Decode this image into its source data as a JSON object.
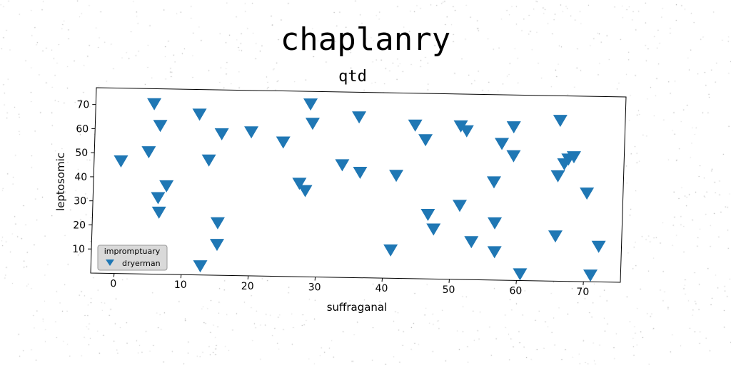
{
  "suptitle": "chaplanry",
  "chart_data": {
    "type": "scatter",
    "title": "qtd",
    "xlabel": "suffraganal",
    "ylabel": "leptosomic",
    "xlim": [
      -3.5,
      75.5
    ],
    "ylim": [
      0,
      77
    ],
    "xticks": [
      0,
      10,
      20,
      30,
      40,
      50,
      60,
      70
    ],
    "yticks": [
      10,
      20,
      30,
      40,
      50,
      60,
      70
    ],
    "grid": false,
    "legend": {
      "title": "impromptuary",
      "placement": "lower-left"
    },
    "series": [
      {
        "name": "dryerman",
        "marker": "triangle-down",
        "color": "#1f77b4",
        "x": [
          0.5,
          4.6,
          5.2,
          6.2,
          6.2,
          6.4,
          7.4,
          12.0,
          12.8,
          13.6,
          15.2,
          15.2,
          15.4,
          19.8,
          24.6,
          27.2,
          28.1,
          28.5,
          28.9,
          33.5,
          35.8,
          36.2,
          41.1,
          41.6,
          44.2,
          45.8,
          46.5,
          47.4,
          51.0,
          51.2,
          51.9,
          53.1,
          56.2,
          56.5,
          56.6,
          57.2,
          58.9,
          59.0,
          60.5,
          65.6,
          65.7,
          65.8,
          66.6,
          67.2,
          68.0,
          70.1,
          71.0,
          72.1
        ],
        "y": [
          47,
          51,
          71,
          62,
          32,
          26,
          37,
          67,
          4,
          48,
          22,
          13,
          59,
          60,
          56,
          39,
          36,
          72,
          64,
          47,
          67,
          44,
          12,
          43,
          64,
          58,
          27,
          21,
          64,
          31,
          62,
          16,
          41,
          24,
          12,
          57,
          64,
          52,
          3,
          19,
          44,
          67,
          49,
          51,
          52,
          37,
          3,
          15
        ]
      }
    ]
  }
}
